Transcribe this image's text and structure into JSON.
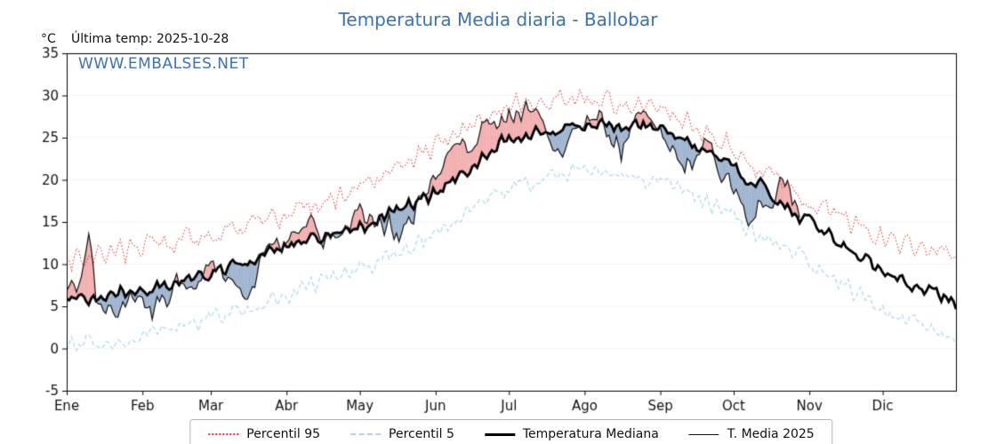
{
  "page": {
    "unit_label": "°C",
    "last_temp_label": "Última temp: 2025-10-28",
    "watermark": "WWW.EMBALSES.NET",
    "title_color": "#3973b5",
    "watermark_color": "#3973b5"
  },
  "chart_data": {
    "type": "line",
    "title": "Temperatura Media diaria - Ballobar",
    "xlabel": "",
    "ylabel": "°C",
    "ylim": [
      -5,
      35
    ],
    "yticks": [
      -5,
      0,
      5,
      10,
      15,
      20,
      25,
      30,
      35
    ],
    "months": [
      "Ene",
      "Feb",
      "Mar",
      "Abr",
      "May",
      "Jun",
      "Jul",
      "Ago",
      "Sep",
      "Oct",
      "Nov",
      "Dic"
    ],
    "month_start_days": [
      0,
      31,
      59,
      90,
      120,
      151,
      181,
      212,
      243,
      273,
      304,
      334
    ],
    "days_in_year": 365,
    "series": [
      {
        "name": "Percentil 95",
        "color": "#e03c3c",
        "style": "dotted",
        "width": 1.1,
        "monthly_anchors": [
          10.5,
          12.0,
          13.5,
          16.0,
          19.0,
          24.0,
          29.0,
          29.5,
          28.5,
          23.5,
          17.5,
          13.0,
          11.5
        ]
      },
      {
        "name": "Percentil 5",
        "color": "#a8d8e8",
        "style": "dashed",
        "width": 1.2,
        "monthly_anchors": [
          0.0,
          1.5,
          3.5,
          6.5,
          9.5,
          13.5,
          19.0,
          21.5,
          20.0,
          15.5,
          10.0,
          4.5,
          1.5
        ]
      },
      {
        "name": "Temperatura Mediana",
        "color": "#000000",
        "style": "solid",
        "width": 2.8,
        "monthly_anchors": [
          5.5,
          6.8,
          9.0,
          12.0,
          14.5,
          18.5,
          25.0,
          26.5,
          26.3,
          21.5,
          15.0,
          9.0,
          5.5
        ]
      },
      {
        "name": "T. Media 2025",
        "color": "#101010",
        "style": "solid",
        "width": 1.2,
        "ends_day": 300,
        "deviation_anchors": [
          [
            0,
            1.5
          ],
          [
            4,
            0.5
          ],
          [
            6,
            1.5
          ],
          [
            9,
            8.5
          ],
          [
            12,
            0.5
          ],
          [
            16,
            -1.0
          ],
          [
            22,
            -2.8
          ],
          [
            27,
            -0.5
          ],
          [
            31,
            -0.5
          ],
          [
            35,
            -2.5
          ],
          [
            40,
            -2.0
          ],
          [
            45,
            0.5
          ],
          [
            50,
            -1.5
          ],
          [
            56,
            0.5
          ],
          [
            60,
            1.0
          ],
          [
            64,
            -0.5
          ],
          [
            68,
            -1.5
          ],
          [
            73,
            -4.5
          ],
          [
            78,
            -1.5
          ],
          [
            83,
            0.5
          ],
          [
            88,
            1.0
          ],
          [
            95,
            1.5
          ],
          [
            102,
            1.0
          ],
          [
            108,
            -1.5
          ],
          [
            113,
            -0.5
          ],
          [
            118,
            1.5
          ],
          [
            124,
            1.0
          ],
          [
            130,
            -1.0
          ],
          [
            136,
            -3.2
          ],
          [
            142,
            -1.0
          ],
          [
            148,
            1.0
          ],
          [
            154,
            2.5
          ],
          [
            160,
            4.0
          ],
          [
            166,
            1.5
          ],
          [
            172,
            3.8
          ],
          [
            178,
            2.0
          ],
          [
            184,
            3.2
          ],
          [
            190,
            3.5
          ],
          [
            196,
            1.0
          ],
          [
            201,
            -2.5
          ],
          [
            206,
            -2.0
          ],
          [
            211,
            0.5
          ],
          [
            216,
            1.5
          ],
          [
            221,
            -0.5
          ],
          [
            227,
            -3.0
          ],
          [
            232,
            0.5
          ],
          [
            237,
            2.2
          ],
          [
            242,
            -0.5
          ],
          [
            247,
            -2.0
          ],
          [
            253,
            -3.3
          ],
          [
            258,
            -0.5
          ],
          [
            263,
            1.5
          ],
          [
            268,
            -1.5
          ],
          [
            274,
            -2.5
          ],
          [
            280,
            -4.2
          ],
          [
            286,
            -2.0
          ],
          [
            291,
            1.5
          ],
          [
            296,
            2.3
          ],
          [
            300,
            1.2
          ]
        ]
      }
    ],
    "fills": {
      "above_median_color": "rgba(228,80,80,0.45)",
      "below_median_color": "rgba(80,120,170,0.55)"
    },
    "noise": {
      "seed": 20251028,
      "amplitudes": [
        1.15,
        1.0,
        0.75,
        0.9
      ]
    },
    "legend_position": "bottom"
  }
}
